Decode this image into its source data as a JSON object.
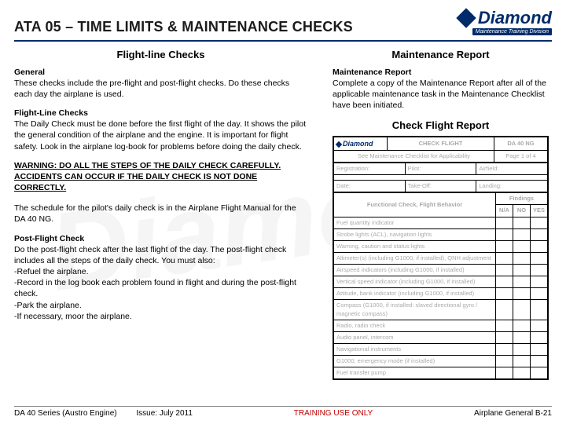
{
  "header": {
    "title": "ATA 05 – TIME LIMITS & MAINTENANCE CHECKS",
    "logo_text": "Diamond",
    "logo_sub": "Maintenance Training Division"
  },
  "left": {
    "section_title": "Flight-line Checks",
    "general_head": "General",
    "general_body": "These checks include the pre-flight and post-flight checks. Do these checks each day the airplane is used.",
    "flc_head": "Flight-Line Checks",
    "flc_body": "The Daily Check must be done before the first flight of the day. It shows the pilot the general condition of the airplane and the engine. It is important for flight safety. Look in the airplane log-book for problems before doing the daily check.",
    "warning": "WARNING: DO ALL THE STEPS OF THE DAILY CHECK CAREFULLY. ACCIDENTS CAN OCCUR IF THE DAILY CHECK IS NOT DONE CORRECTLY.",
    "sched": "The schedule for the pilot's daily check is in the Airplane Flight Manual for the DA 40 NG.",
    "pfc_head": "Post-Flight Check",
    "pfc_body": "Do the post-flight check after the last flight of the day. The post-flight check includes all the steps of the daily check. You must also:\n-Refuel the airplane.\n-Record in the log book each problem found in flight and during the post-flight check.\n-Park the airplane.\n-If necessary, moor the airplane."
  },
  "right": {
    "section_title": "Maintenance Report",
    "mr_head": "Maintenance Report",
    "mr_body": "Complete a copy of the Maintenance Report after all of the applicable maintenance task in the Maintenance Checklist have been initiated.",
    "cfr_title": "Check Flight Report",
    "form": {
      "check_flight": "CHECK FLIGHT",
      "da40ng": "DA 40 NG",
      "see": "See Maintenance Checklist for Applicability",
      "page": "Page 1 of 4",
      "reg": "Registration:",
      "pilot": "Pilot:",
      "airfield": "Airfield:",
      "date": "Date:",
      "takeoff": "Take-Off:",
      "landing": "Landing:",
      "fcfb": "Functional Check, Flight Behavior",
      "findings": "Findings",
      "na": "N/A",
      "no": "NO",
      "yes": "YES",
      "rows": [
        "Fuel quantity indicator",
        "Strobe lights (ACL), navigation lights",
        "Warning, caution and status lights",
        "Altimeter(s) (including G1000, if installed), QNH adjustment",
        "Airspeed indicators (including G1000, if installed)",
        "Vertical speed indicator (including G1000, if installed)",
        "Attitude, bank indicator (including G1000, if installed)",
        "Compass (G1000, if installed: slaved directional gyro / magnetic compass)",
        "Radio, radio check",
        "Audio panel, intercom",
        "Navigational instruments",
        "G1000, emergency mode (if installed)",
        "Fuel transfer pump"
      ]
    }
  },
  "footer": {
    "series": "DA 40 Series (Austro Engine)",
    "issue": "Issue: July 2011",
    "center": "TRAINING USE ONLY",
    "right": "Airplane General  B-21"
  }
}
